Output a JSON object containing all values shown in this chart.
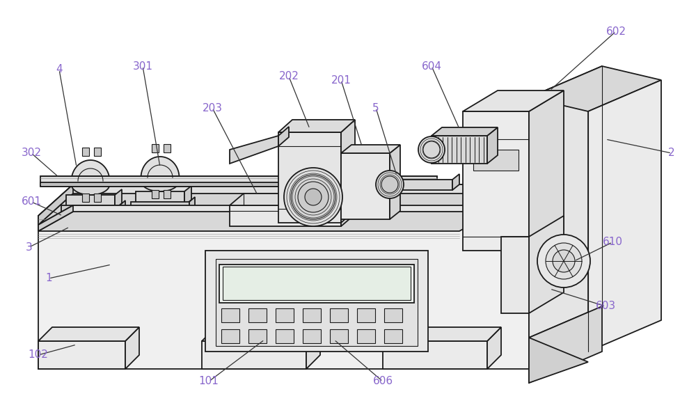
{
  "bg_color": "#ffffff",
  "line_color": "#1a1a1a",
  "label_color": "#8866cc",
  "fig_width": 10.0,
  "fig_height": 5.66,
  "dpi": 100
}
